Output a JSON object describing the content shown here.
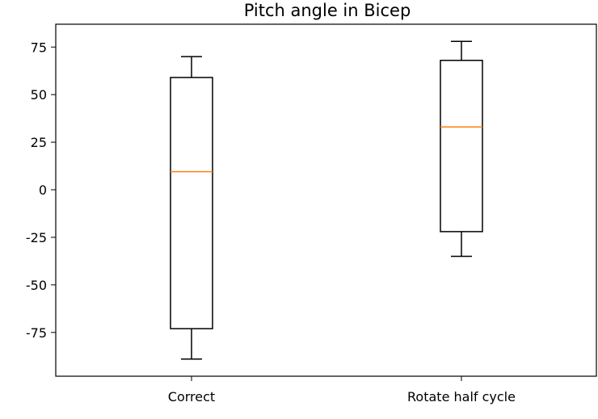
{
  "chart_data": {
    "type": "box",
    "title": "Pitch angle in Bicep",
    "xlabel": "",
    "ylabel": "",
    "categories": [
      "Correct",
      "Rotate half cycle"
    ],
    "boxes": [
      {
        "category": "Correct",
        "whisker_low": -89,
        "q1": -73,
        "median": 9.5,
        "q3": 59,
        "whisker_high": 70
      },
      {
        "category": "Rotate half cycle",
        "whisker_low": -35,
        "q1": -22,
        "median": 33,
        "q3": 68,
        "whisker_high": 78
      }
    ],
    "y_ticks": [
      -75,
      -50,
      -25,
      0,
      25,
      50,
      75
    ],
    "ylim": [
      -98,
      87
    ],
    "grid": false,
    "colors": {
      "box": "#000000",
      "median": "#ff7f0e",
      "axes": "#000000"
    }
  }
}
